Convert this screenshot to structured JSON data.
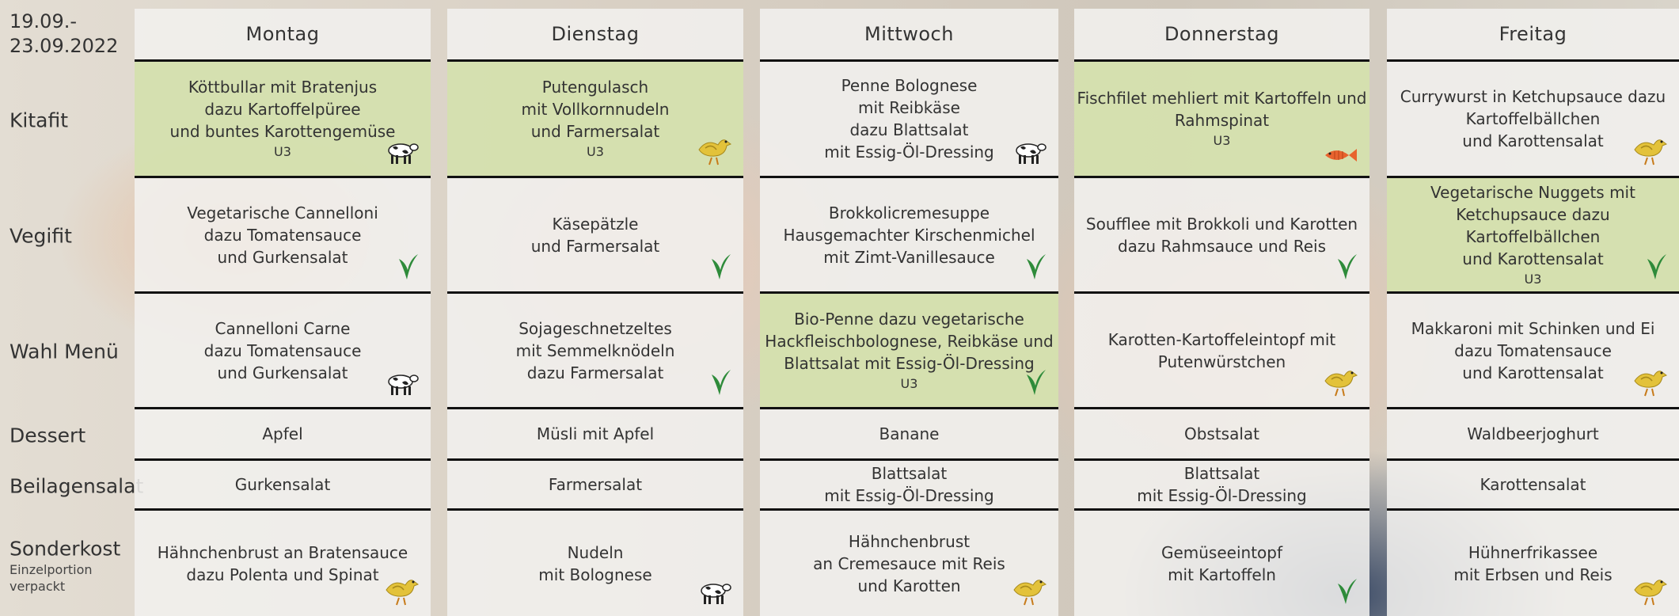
{
  "date": [
    "19.09.-",
    "23.09.2022"
  ],
  "days": [
    "Montag",
    "Dienstag",
    "Mittwoch",
    "Donnerstag",
    "Freitag"
  ],
  "rows": [
    {
      "label": "Kitafit",
      "cells": [
        {
          "lines": [
            "Köttbullar mit Bratenjus",
            "dazu Kartoffelpüree",
            "und buntes Karottengemüse"
          ],
          "note": "U3",
          "icon": "cow",
          "highlight": true
        },
        {
          "lines": [
            "Putengulasch",
            "mit Vollkornnudeln",
            "und Farmersalat"
          ],
          "note": "U3",
          "icon": "chicken",
          "highlight": true
        },
        {
          "lines": [
            "Penne Bolognese",
            "mit Reibkäse",
            "dazu Blattsalat",
            "mit Essig-Öl-Dressing"
          ],
          "icon": "cow"
        },
        {
          "lines": [
            "Fischfilet mehliert mit Kartoffeln und",
            "Rahmspinat"
          ],
          "note": "U3",
          "icon": "fish",
          "highlight": true
        },
        {
          "lines": [
            "Currywurst in Ketchupsauce dazu",
            "Kartoffelbällchen",
            "und Karottensalat"
          ],
          "icon": "chicken"
        }
      ]
    },
    {
      "label": "Vegifit",
      "cells": [
        {
          "lines": [
            "Vegetarische Cannelloni",
            "dazu Tomatensauce",
            "und Gurkensalat"
          ],
          "icon": "veg"
        },
        {
          "lines": [
            "Käsepätzle",
            "und Farmersalat"
          ],
          "icon": "veg"
        },
        {
          "lines": [
            "Brokkolicremesuppe",
            "Hausgemachter Kirschenmichel",
            "mit Zimt-Vanillesauce"
          ],
          "icon": "veg"
        },
        {
          "lines": [
            "Soufflee mit Brokkoli und Karotten",
            "dazu Rahmsauce und Reis"
          ],
          "icon": "veg"
        },
        {
          "lines": [
            "Vegetarische Nuggets mit",
            "Ketchupsauce dazu Kartoffelbällchen",
            "und Karottensalat"
          ],
          "note": "U3",
          "icon": "veg",
          "highlight": true
        }
      ]
    },
    {
      "label": "Wahl Menü",
      "cells": [
        {
          "lines": [
            "Cannelloni Carne",
            "dazu Tomatensauce",
            "und Gurkensalat"
          ],
          "icon": "cow"
        },
        {
          "lines": [
            "Sojageschnetzeltes",
            "mit Semmelknödeln",
            "dazu Farmersalat"
          ],
          "icon": "veg"
        },
        {
          "lines": [
            "Bio-Penne dazu vegetarische",
            "Hackfleischbolognese, Reibkäse und",
            "Blattsalat mit Essig-Öl-Dressing"
          ],
          "note": "U3",
          "icon": "veg",
          "highlight": true
        },
        {
          "lines": [
            "Karotten-Kartoffeleintopf mit",
            "Putenwürstchen"
          ],
          "icon": "chicken"
        },
        {
          "lines": [
            "Makkaroni mit Schinken und Ei",
            "dazu Tomatensauce",
            "und Karottensalat"
          ],
          "icon": "chicken"
        }
      ]
    },
    {
      "label": "Dessert",
      "cells": [
        {
          "lines": [
            "Apfel"
          ]
        },
        {
          "lines": [
            "Müsli mit Apfel"
          ]
        },
        {
          "lines": [
            "Banane"
          ]
        },
        {
          "lines": [
            "Obstsalat"
          ]
        },
        {
          "lines": [
            "Waldbeerjoghurt"
          ]
        }
      ]
    },
    {
      "label": "Beilagensalat",
      "cells": [
        {
          "lines": [
            "Gurkensalat"
          ]
        },
        {
          "lines": [
            "Farmersalat"
          ]
        },
        {
          "lines": [
            "Blattsalat",
            "mit Essig-Öl-Dressing"
          ]
        },
        {
          "lines": [
            "Blattsalat",
            "mit Essig-Öl-Dressing"
          ]
        },
        {
          "lines": [
            "Karottensalat"
          ]
        }
      ]
    },
    {
      "label": "Sonderkost",
      "sublabel": [
        "Einzelportion",
        "verpackt"
      ],
      "cells": [
        {
          "lines": [
            "Hähnchenbrust an Bratensauce",
            "dazu Polenta und Spinat"
          ],
          "icon": "chicken"
        },
        {
          "lines": [
            "Nudeln",
            "mit Bolognese"
          ],
          "icon": "cow"
        },
        {
          "lines": [
            "Hähnchenbrust",
            "an Cremesauce mit Reis",
            "und Karotten"
          ],
          "icon": "chicken"
        },
        {
          "lines": [
            "Gemüseeintopf",
            "mit Kartoffeln"
          ],
          "icon": "veg"
        },
        {
          "lines": [
            "Hühnerfrikassee",
            "mit Erbsen und Reis"
          ],
          "icon": "chicken"
        }
      ]
    }
  ]
}
